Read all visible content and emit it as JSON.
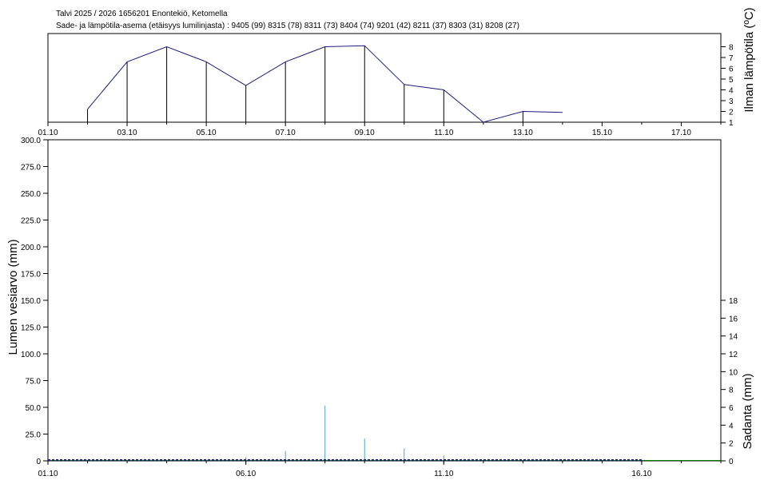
{
  "header": {
    "title": "Talvi 2025 / 2026 1656201 Enontekiö, Ketomella",
    "subtitle": "Sade- ja lämpötila-asema (etäisyys lumilinjasta) :  9405 (99) 8315 (78) 8311 (73) 8404 (74) 9201 (42) 8211 (37) 8303 (31) 8208 (27)"
  },
  "chart_data": [
    {
      "type": "line",
      "title": "",
      "ylabel": "Ilman lämpötila (ºC)",
      "x_ticks": [
        "01.10",
        "03.10",
        "05.10",
        "07.10",
        "09.10",
        "11.10",
        "13.10",
        "15.10",
        "17.10"
      ],
      "x_range_days": [
        1,
        18
      ],
      "y_ticks": [
        "1",
        "2",
        "3",
        "4",
        "5",
        "6",
        "7",
        "8"
      ],
      "ylim": [
        1,
        9
      ],
      "series": [
        {
          "x": [
            2,
            3,
            4,
            5,
            6,
            7,
            8,
            9,
            10,
            11,
            12,
            13,
            14
          ],
          "values": [
            2.2,
            6.6,
            8.0,
            6.6,
            4.4,
            6.6,
            8.0,
            8.1,
            4.5,
            4.0,
            1.0,
            2.0,
            1.9
          ]
        }
      ],
      "colors": {
        "line": "#1a1a80",
        "drop_lines": "#000000"
      }
    },
    {
      "type": "bar",
      "title": "",
      "ylabel": "Lumen vesiarvo (mm)",
      "y2label": "Sadanta (mm)",
      "x_ticks": [
        "01.10",
        "06.10",
        "11.10",
        "16.10"
      ],
      "x_range_days": [
        1,
        18
      ],
      "y_ticks": [
        "0",
        "25.0",
        "50.0",
        "75.0",
        "100.0",
        "125.0",
        "150.0",
        "175.0",
        "200.0",
        "225.0",
        "250.0",
        "275.0",
        "300.0"
      ],
      "ylim": [
        0,
        300
      ],
      "y2_ticks": [
        "0",
        "2",
        "4",
        "6",
        "8",
        "10",
        "12",
        "14",
        "16",
        "18"
      ],
      "y2lim": [
        0,
        36
      ],
      "precipitation": {
        "x": [
          6,
          7,
          8,
          9,
          10,
          11
        ],
        "values": [
          0.4,
          1.1,
          6.2,
          2.5,
          1.4,
          0.6
        ]
      },
      "snow_water_equivalent": {
        "x_start": 1,
        "x_end": 16,
        "value": 0
      },
      "reference_line": {
        "x_start": 1,
        "x_end": 18,
        "value": 0
      },
      "colors": {
        "precip": "#4aa3d8",
        "swe": "#1a1a80",
        "reference": "#008000"
      }
    }
  ]
}
